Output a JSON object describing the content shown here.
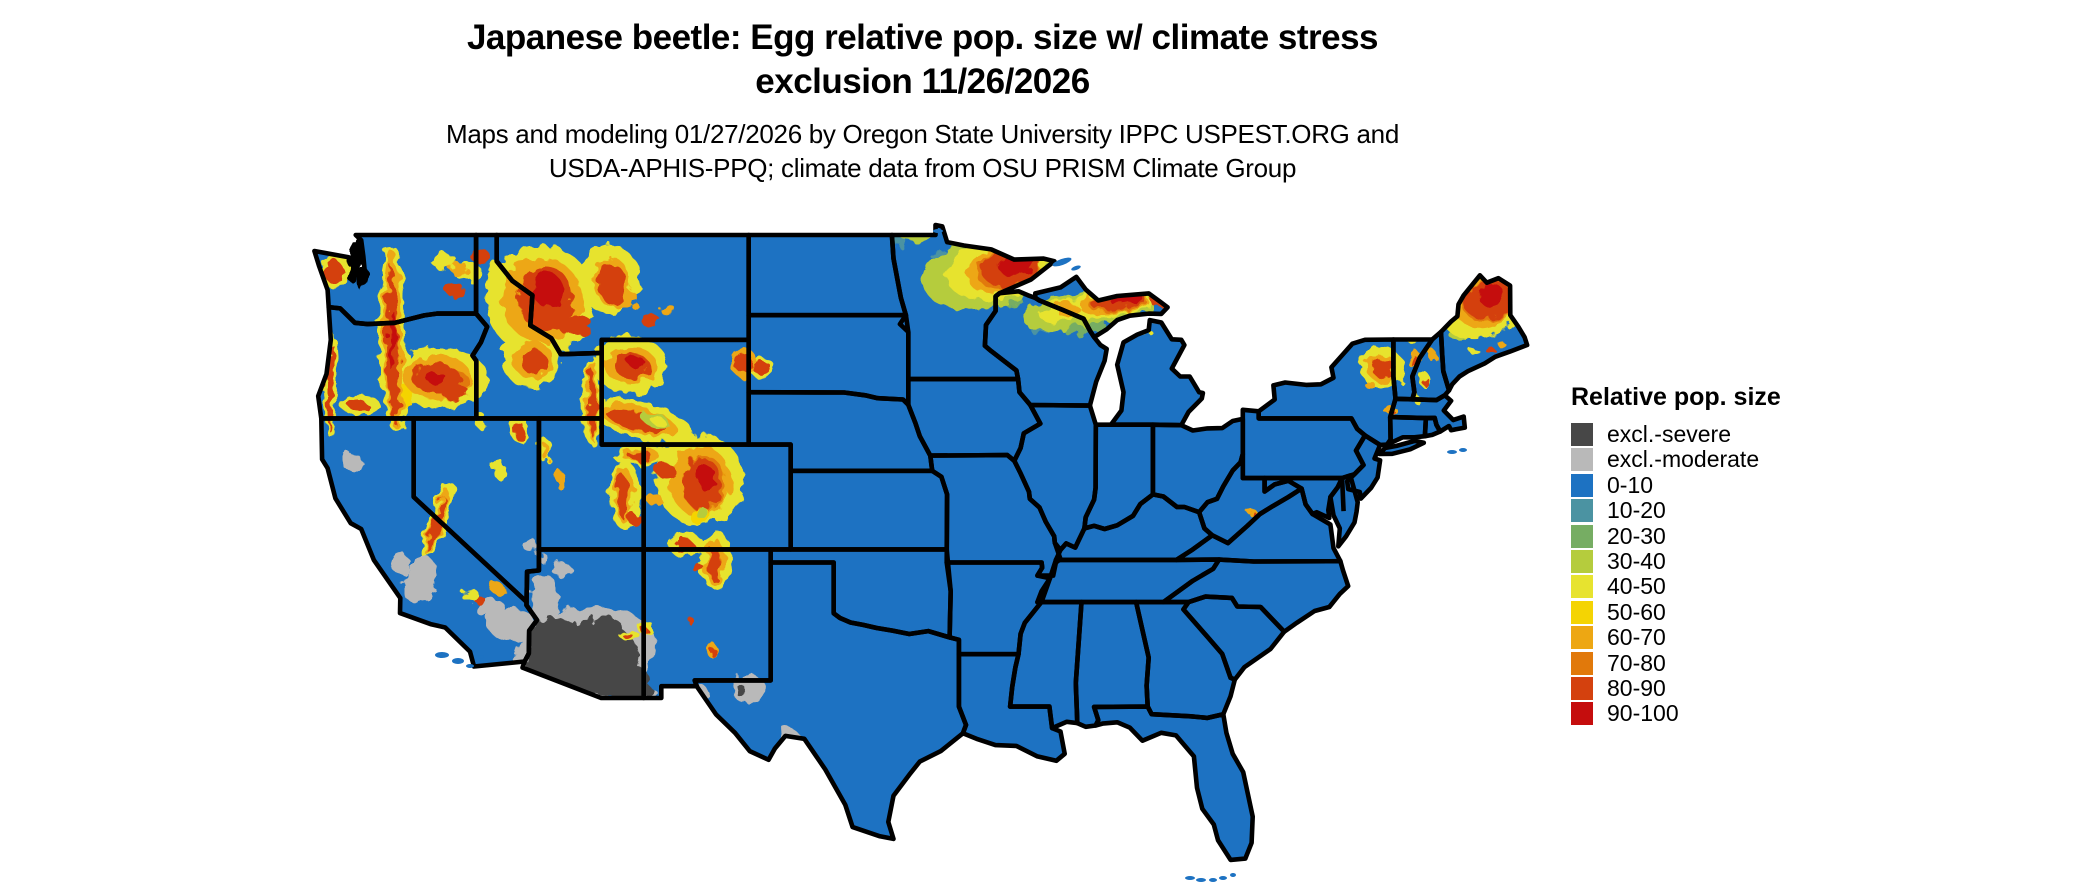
{
  "header": {
    "title_line1": "Japanese beetle: Egg relative pop. size w/ climate stress",
    "title_line2": "exclusion 11/26/2026",
    "subtitle_line1": "Maps and modeling 01/27/2026 by Oregon State University IPPC USPEST.ORG and",
    "subtitle_line2": "USDA-APHIS-PPQ; climate data from OSU PRISM Climate Group"
  },
  "legend": {
    "title": "Relative pop. size",
    "items": [
      {
        "label": "excl.-severe",
        "color": "#474747"
      },
      {
        "label": "excl.-moderate",
        "color": "#b9b9b9"
      },
      {
        "label": "0-10",
        "color": "#1d72c2"
      },
      {
        "label": "10-20",
        "color": "#4b93a2"
      },
      {
        "label": "20-30",
        "color": "#76ad63"
      },
      {
        "label": "30-40",
        "color": "#b5cc3d"
      },
      {
        "label": "40-50",
        "color": "#e7e32f"
      },
      {
        "label": "50-60",
        "color": "#f4d403"
      },
      {
        "label": "60-70",
        "color": "#eda713"
      },
      {
        "label": "70-80",
        "color": "#e1790b"
      },
      {
        "label": "80-90",
        "color": "#d4410e"
      },
      {
        "label": "90-100",
        "color": "#c50d0d"
      }
    ]
  },
  "map": {
    "border_color": "#000000",
    "water_color": "#ffffff"
  }
}
